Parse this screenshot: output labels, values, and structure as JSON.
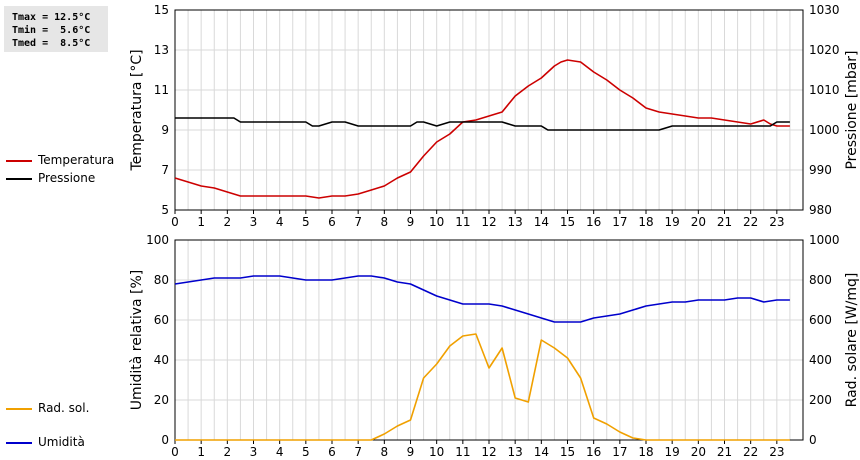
{
  "stats": {
    "tmax": "Tmax = 12.5°C",
    "tmin": "Tmin =  5.6°C",
    "tmed": "Tmed =  8.5°C"
  },
  "legend_top": [
    {
      "label": "Temperatura",
      "color": "#cc0000"
    },
    {
      "label": "Pressione",
      "color": "#000000"
    }
  ],
  "legend_bottom": [
    {
      "label": "Umidità",
      "color": "#0000cc"
    },
    {
      "label": "Rad. sol.",
      "color": "#f0a000"
    }
  ],
  "chart_data": [
    {
      "type": "line",
      "xlim": [
        0,
        24
      ],
      "xticks": [
        "0",
        "1",
        "2",
        "3",
        "4",
        "5",
        "6",
        "7",
        "8",
        "9",
        "10",
        "11",
        "12",
        "13",
        "14",
        "15",
        "16",
        "17",
        "18",
        "19",
        "20",
        "21",
        "22",
        "23"
      ],
      "ylabel": "Temperatura [°C]",
      "ylim": [
        5,
        15
      ],
      "yticks": [
        "5",
        "7",
        "9",
        "11",
        "13",
        "15"
      ],
      "y2label": "Pressione [mbar]",
      "y2lim": [
        980,
        1030
      ],
      "y2ticks": [
        "980",
        "990",
        "1000",
        "1010",
        "1020",
        "1030"
      ],
      "grid": true,
      "series": [
        {
          "name": "Temperatura",
          "color": "#cc0000",
          "axis": "left",
          "x": [
            0,
            0.5,
            1,
            1.5,
            2,
            2.5,
            3,
            3.5,
            4,
            4.5,
            5,
            5.25,
            5.5,
            5.75,
            6,
            6.5,
            7,
            7.5,
            8,
            8.5,
            9,
            9.5,
            10,
            10.5,
            11,
            11.5,
            12,
            12.25,
            12.5,
            13,
            13.5,
            14,
            14.5,
            14.75,
            15,
            15.25,
            15.5,
            16,
            16.5,
            17,
            17.5,
            18,
            18.5,
            19,
            19.5,
            20,
            20.5,
            21,
            21.5,
            22,
            22.5,
            22.75,
            23,
            23.5
          ],
          "y": [
            6.6,
            6.4,
            6.2,
            6.1,
            5.9,
            5.7,
            5.7,
            5.7,
            5.7,
            5.7,
            5.7,
            5.65,
            5.6,
            5.65,
            5.7,
            5.7,
            5.8,
            6.0,
            6.2,
            6.6,
            6.9,
            7.7,
            8.4,
            8.8,
            9.4,
            9.5,
            9.7,
            9.8,
            9.9,
            10.7,
            11.2,
            11.6,
            12.2,
            12.4,
            12.5,
            12.45,
            12.4,
            11.9,
            11.5,
            11.0,
            10.6,
            10.1,
            9.9,
            9.8,
            9.7,
            9.6,
            9.6,
            9.5,
            9.4,
            9.3,
            9.5,
            9.3,
            9.2,
            9.2
          ]
        },
        {
          "name": "Pressione",
          "color": "#000000",
          "axis": "right",
          "x": [
            0,
            0.5,
            1,
            1.5,
            2,
            2.25,
            2.5,
            3,
            3.5,
            4,
            4.5,
            5,
            5.25,
            5.5,
            6,
            6.25,
            6.5,
            7,
            7.5,
            8,
            8.5,
            9,
            9.25,
            9.5,
            10,
            10.5,
            11,
            11.5,
            12,
            12.5,
            13,
            13.5,
            14,
            14.25,
            14.5,
            15,
            15.5,
            16,
            16.5,
            17,
            17.5,
            18,
            18.25,
            18.5,
            19,
            19.5,
            20,
            20.5,
            21,
            21.5,
            22,
            22.5,
            22.75,
            23,
            23.5
          ],
          "y": [
            1003,
            1003,
            1003,
            1003,
            1003,
            1003,
            1002,
            1002,
            1002,
            1002,
            1002,
            1002,
            1001,
            1001,
            1002,
            1002,
            1002,
            1001,
            1001,
            1001,
            1001,
            1001,
            1002,
            1002,
            1001,
            1002,
            1002,
            1002,
            1002,
            1002,
            1001,
            1001,
            1001,
            1000,
            1000,
            1000,
            1000,
            1000,
            1000,
            1000,
            1000,
            1000,
            1000,
            1000,
            1001,
            1001,
            1001,
            1001,
            1001,
            1001,
            1001,
            1001,
            1001,
            1002,
            1002
          ]
        }
      ]
    },
    {
      "type": "line",
      "xlim": [
        0,
        24
      ],
      "xticks": [
        "0",
        "1",
        "2",
        "3",
        "4",
        "5",
        "6",
        "7",
        "8",
        "9",
        "10",
        "11",
        "12",
        "13",
        "14",
        "15",
        "16",
        "17",
        "18",
        "19",
        "20",
        "21",
        "22",
        "23"
      ],
      "ylabel": "Umidità relativa [%]",
      "ylim": [
        0,
        100
      ],
      "yticks": [
        "0",
        "20",
        "40",
        "60",
        "80",
        "100"
      ],
      "y2label": "Rad. solare [W/mq]",
      "y2lim": [
        0,
        1000
      ],
      "y2ticks": [
        "0",
        "200",
        "400",
        "600",
        "800",
        "1000"
      ],
      "grid": true,
      "series": [
        {
          "name": "Umidità",
          "color": "#0000cc",
          "axis": "left",
          "x": [
            0,
            0.5,
            1,
            1.5,
            2,
            2.5,
            3,
            3.5,
            4,
            4.5,
            5,
            5.5,
            6,
            6.5,
            7,
            7.5,
            8,
            8.5,
            9,
            9.5,
            10,
            10.5,
            11,
            11.5,
            12,
            12.5,
            13,
            13.5,
            14,
            14.5,
            15,
            15.5,
            16,
            16.5,
            17,
            17.5,
            18,
            18.5,
            19,
            19.5,
            20,
            20.5,
            21,
            21.5,
            22,
            22.5,
            23,
            23.5
          ],
          "y": [
            78,
            79,
            80,
            81,
            81,
            81,
            82,
            82,
            82,
            81,
            80,
            80,
            80,
            81,
            82,
            82,
            81,
            79,
            78,
            75,
            72,
            70,
            68,
            68,
            68,
            67,
            65,
            63,
            61,
            59,
            59,
            59,
            61,
            62,
            63,
            65,
            67,
            68,
            69,
            69,
            70,
            70,
            70,
            71,
            71,
            69,
            70,
            70
          ]
        },
        {
          "name": "Rad. sol.",
          "color": "#f0a000",
          "axis": "right",
          "x": [
            0,
            1,
            2,
            3,
            4,
            5,
            6,
            7,
            7.5,
            8,
            8.5,
            9,
            9.5,
            10,
            10.5,
            11,
            11.5,
            12,
            12.5,
            13,
            13.5,
            14,
            14.5,
            15,
            15.5,
            16,
            16.5,
            17,
            17.5,
            18,
            19,
            20,
            21,
            22,
            23,
            23.5
          ],
          "y": [
            0,
            0,
            0,
            0,
            0,
            0,
            0,
            0,
            0,
            30,
            70,
            100,
            310,
            380,
            470,
            520,
            530,
            360,
            460,
            210,
            190,
            500,
            460,
            410,
            310,
            110,
            80,
            40,
            10,
            0,
            0,
            0,
            0,
            0,
            0,
            0
          ]
        }
      ]
    }
  ]
}
